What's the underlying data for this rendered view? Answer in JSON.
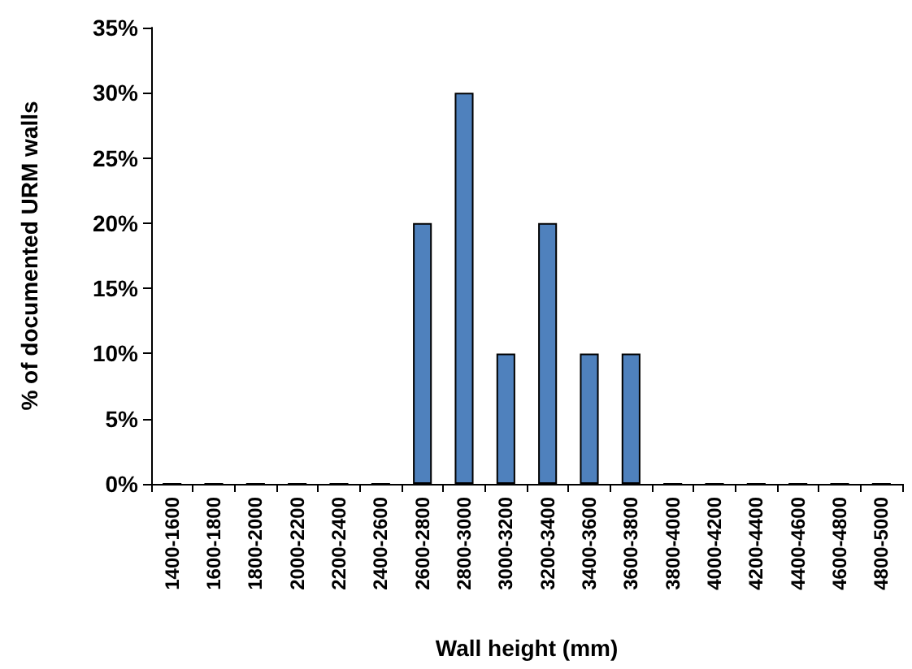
{
  "chart_data": {
    "type": "bar",
    "xlabel": "Wall height (mm)",
    "ylabel": "% of documented URM walls",
    "categories": [
      "1400-1600",
      "1600-1800",
      "1800-2000",
      "2000-2200",
      "2200-2400",
      "2400-2600",
      "2600-2800",
      "2800-3000",
      "3000-3200",
      "3200-3400",
      "3400-3600",
      "3600-3800",
      "3800-4000",
      "4000-4200",
      "4200-4400",
      "4400-4600",
      "4600-4800",
      "4800-5000"
    ],
    "values": [
      0,
      0,
      0,
      0,
      0,
      0,
      20,
      30,
      10,
      20,
      10,
      10,
      0,
      0,
      0,
      0,
      0,
      0
    ],
    "color": "#4f81bd",
    "ylim": [
      0,
      35
    ],
    "yticks": [
      {
        "value": 0,
        "label": "0%"
      },
      {
        "value": 5,
        "label": "5%"
      },
      {
        "value": 10,
        "label": "10%"
      },
      {
        "value": 15,
        "label": "15%"
      },
      {
        "value": 20,
        "label": "20%"
      },
      {
        "value": 25,
        "label": "25%"
      },
      {
        "value": 30,
        "label": "30%"
      },
      {
        "value": 35,
        "label": "35%"
      }
    ],
    "grid": false
  }
}
